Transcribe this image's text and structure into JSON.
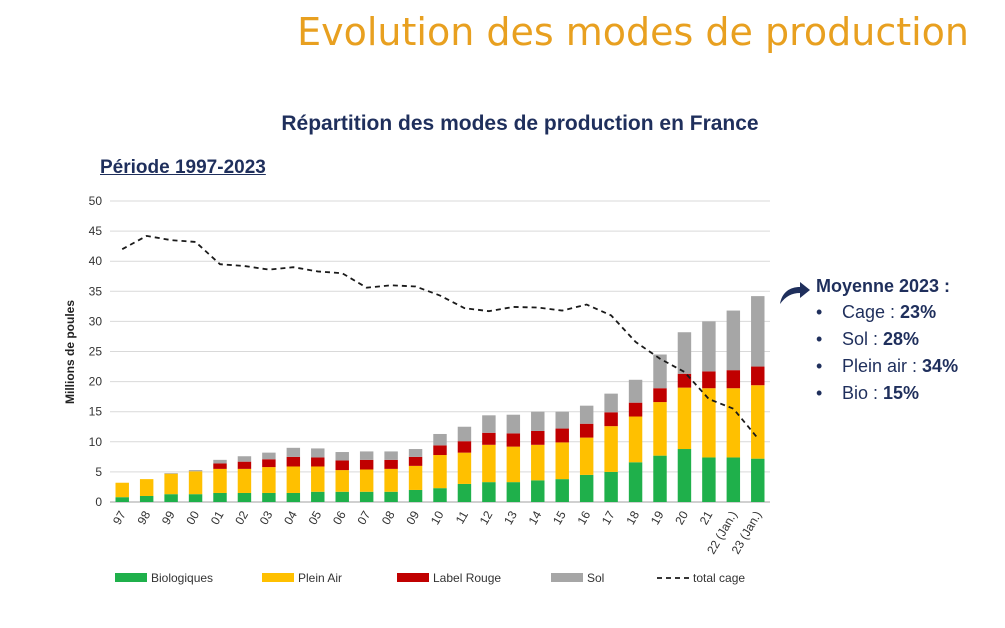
{
  "slide": {
    "title": "Evolution des modes de production",
    "period": "Période 1997-2023"
  },
  "averages": {
    "title": "Moyenne 2023 :",
    "items": [
      {
        "label": "Cage : ",
        "value": "23%"
      },
      {
        "label": "Sol : ",
        "value": "28%"
      },
      {
        "label": "Plein air : ",
        "value": "34%"
      },
      {
        "label": "Bio : ",
        "value": "15%"
      }
    ]
  },
  "colors": {
    "bio": "#1FB04B",
    "plein_air": "#FFC000",
    "label_rouge": "#C00000",
    "sol": "#A6A6A6",
    "cage_line": "#1a1a1a",
    "title_orange": "#E8A020",
    "navy": "#1F2F5C"
  },
  "chart_data": {
    "type": "bar",
    "stacked": true,
    "title": "Répartition des modes de production en France",
    "xlabel": "",
    "ylabel": "Millions de poules",
    "ylim": [
      0,
      50
    ],
    "yticks": [
      0,
      5,
      10,
      15,
      20,
      25,
      30,
      35,
      40,
      45,
      50
    ],
    "grid": true,
    "legend_position": "bottom",
    "categories": [
      "97",
      "98",
      "99",
      "00",
      "01",
      "02",
      "03",
      "04",
      "05",
      "06",
      "07",
      "08",
      "09",
      "10",
      "11",
      "12",
      "13",
      "14",
      "15",
      "16",
      "17",
      "18",
      "19",
      "20",
      "21",
      "22 (Jan.)",
      "23 (Jan.)"
    ],
    "series": [
      {
        "name": "Biologiques",
        "kind": "bar",
        "color": "#1FB04B",
        "values": [
          0.8,
          1.0,
          1.3,
          1.3,
          1.5,
          1.5,
          1.5,
          1.5,
          1.7,
          1.7,
          1.7,
          1.7,
          2.0,
          2.3,
          3.0,
          3.3,
          3.3,
          3.6,
          3.8,
          4.5,
          5.0,
          6.6,
          7.7,
          8.8,
          7.4,
          7.4,
          7.2
        ]
      },
      {
        "name": "Plein Air",
        "kind": "bar",
        "color": "#FFC000",
        "values": [
          2.4,
          2.8,
          3.4,
          3.8,
          4.0,
          4.0,
          4.3,
          4.4,
          4.2,
          3.6,
          3.7,
          3.8,
          4.0,
          5.5,
          5.2,
          6.2,
          5.9,
          5.9,
          6.1,
          6.2,
          7.6,
          7.6,
          8.9,
          10.2,
          11.5,
          11.5,
          12.2
        ]
      },
      {
        "name": "Label Rouge",
        "kind": "bar",
        "color": "#C00000",
        "values": [
          0,
          0,
          0,
          0,
          0.9,
          1.2,
          1.3,
          1.6,
          1.5,
          1.6,
          1.6,
          1.5,
          1.5,
          1.6,
          1.9,
          2.0,
          2.2,
          2.3,
          2.3,
          2.3,
          2.3,
          2.3,
          2.3,
          2.3,
          2.8,
          3.0,
          3.1
        ]
      },
      {
        "name": "Sol",
        "kind": "bar",
        "color": "#A6A6A6",
        "values": [
          0,
          0,
          0.1,
          0.2,
          0.6,
          0.9,
          1.1,
          1.5,
          1.5,
          1.4,
          1.4,
          1.4,
          1.3,
          1.9,
          2.4,
          2.9,
          3.1,
          3.2,
          2.8,
          3.0,
          3.1,
          3.8,
          5.6,
          6.9,
          8.3,
          9.9,
          11.7
        ]
      },
      {
        "name": "total cage",
        "kind": "line",
        "style": "dashed",
        "color": "#1a1a1a",
        "values": [
          42.0,
          44.2,
          43.5,
          43.2,
          39.5,
          39.2,
          38.6,
          39.0,
          38.3,
          38.0,
          35.6,
          36.0,
          35.8,
          34.3,
          32.2,
          31.7,
          32.4,
          32.3,
          31.8,
          32.8,
          31.0,
          26.6,
          23.8,
          21.6,
          17.1,
          15.5,
          10.6
        ]
      }
    ]
  }
}
